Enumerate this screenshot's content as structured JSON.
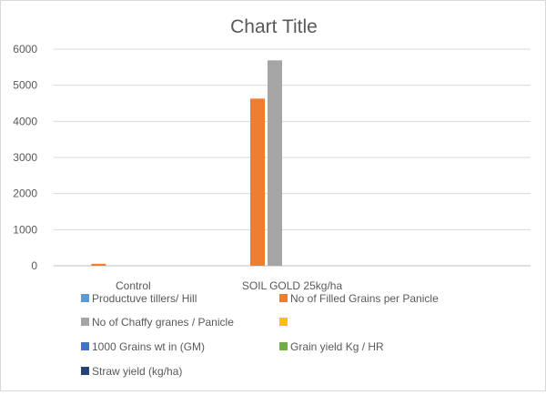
{
  "chart_data": {
    "type": "bar",
    "title": "Chart Title",
    "categories": [
      "Control",
      "SOIL GOLD 25kg/ha",
      ""
    ],
    "series": [
      {
        "name": "Productuve tillers/ Hill",
        "color": "#5b9bd5",
        "values": [
          0,
          0,
          0
        ]
      },
      {
        "name": "No of Filled Grains per Panicle",
        "color": "#ed7d31",
        "values": [
          55,
          4630,
          0
        ]
      },
      {
        "name": "No of Chaffy granes / Panicle",
        "color": "#a5a5a5",
        "values": [
          0,
          5690,
          0
        ]
      },
      {
        "name": "",
        "color": "#ffc000",
        "values": [
          0,
          0,
          0
        ]
      },
      {
        "name": "1000 Grains wt in (GM)",
        "color": "#4472c4",
        "values": [
          0,
          0,
          0
        ]
      },
      {
        "name": "Grain yield Kg / HR",
        "color": "#70ad47",
        "values": [
          0,
          0,
          0
        ]
      },
      {
        "name": "Straw yield (kg/ha)",
        "color": "#264478",
        "values": [
          0,
          0,
          0
        ]
      }
    ],
    "yticks": [
      "0",
      "1000",
      "2000",
      "3000",
      "4000",
      "5000",
      "6000"
    ],
    "ylim": [
      0,
      6000
    ],
    "xlabel": "",
    "ylabel": "",
    "grid": true,
    "legend_position": "bottom"
  }
}
